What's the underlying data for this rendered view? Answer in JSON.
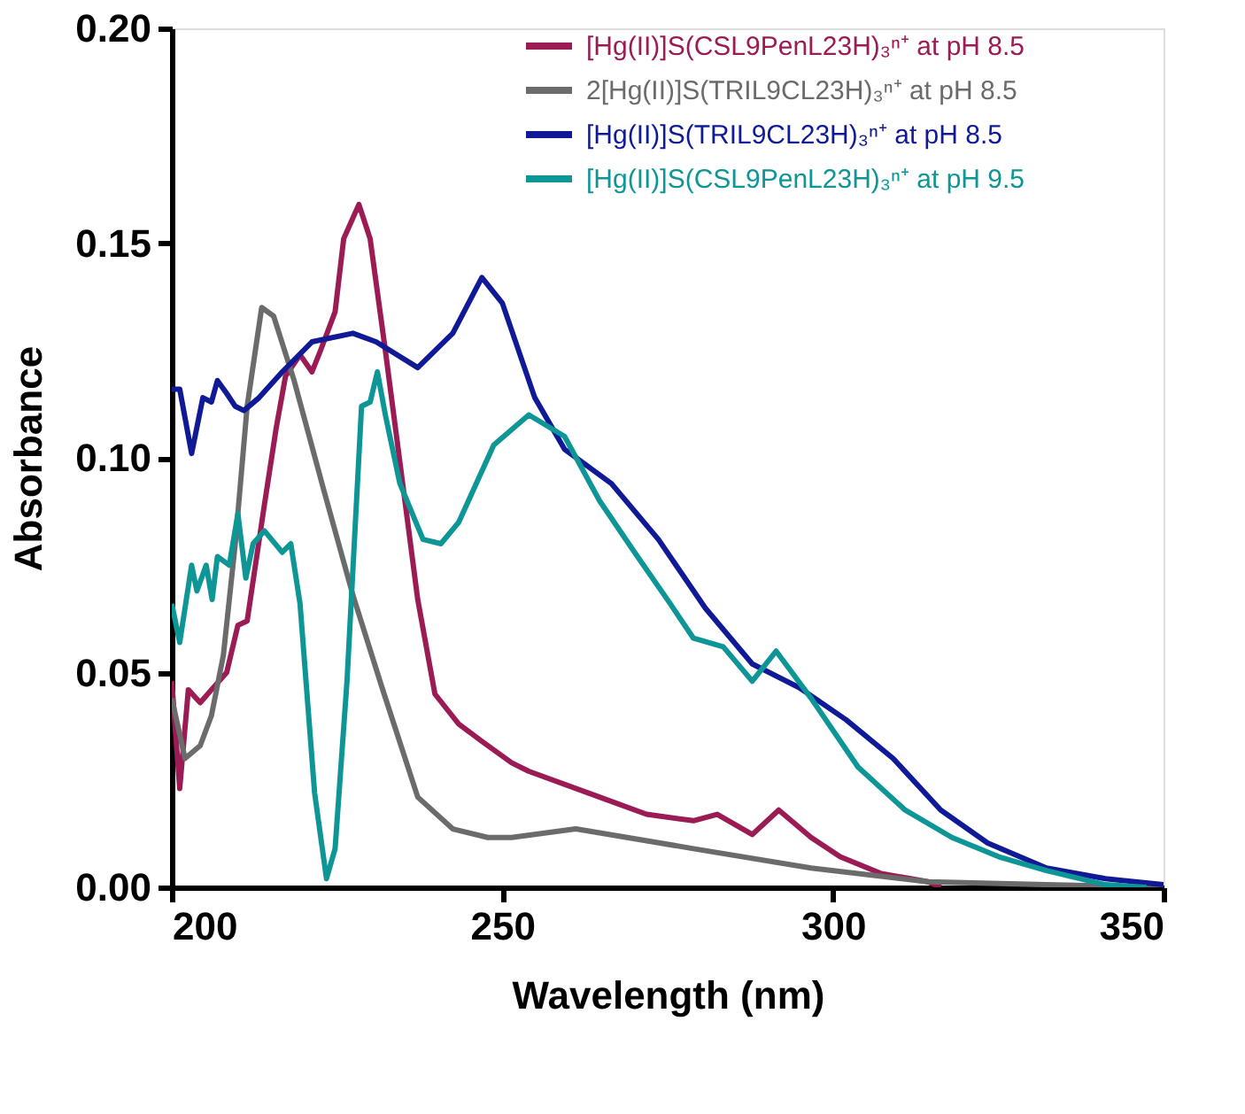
{
  "chart_data": {
    "type": "line",
    "xlabel": "Wavelength (nm)",
    "ylabel": "Absorbance",
    "xlim": [
      200,
      350
    ],
    "ylim": [
      0,
      0.2
    ],
    "xticks": [
      200,
      250,
      300,
      350
    ],
    "yticks": [
      {
        "value": 0,
        "label": "0.00"
      },
      {
        "value": 0.05,
        "label": "0.05"
      },
      {
        "value": 0.1,
        "label": "0.10"
      },
      {
        "value": 0.15,
        "label": "0.15"
      },
      {
        "value": 0.2,
        "label": "0.20"
      }
    ],
    "grid": false,
    "legend": "top right",
    "marker": "none",
    "line_style": "solid",
    "series": [
      {
        "name": "[Hg(II)]S(CSL9PenL23H)₃ⁿ⁺ at pH 8.5",
        "color": "#9b1b55",
        "x": [
          200,
          201.2,
          202.5,
          204.3,
          206,
          208.3,
          210,
          211.4,
          214,
          215.8,
          217.2,
          219.4,
          221.2,
          222.5,
          224.7,
          226,
          228.3,
          230,
          232.3,
          234.5,
          237.2,
          239.8,
          243.4,
          246.9,
          251.4,
          254,
          264.7,
          271.8,
          278.9,
          282.5,
          287.8,
          291.8,
          296.7,
          301.1,
          307.3,
          314.4,
          316.3
        ],
        "values": [
          0.048,
          0.023,
          0.046,
          0.043,
          0.046,
          0.05,
          0.061,
          0.062,
          0.089,
          0.107,
          0.119,
          0.124,
          0.12,
          0.125,
          0.134,
          0.151,
          0.159,
          0.151,
          0.125,
          0.099,
          0.067,
          0.045,
          0.038,
          0.034,
          0.029,
          0.027,
          0.021,
          0.017,
          0.0155,
          0.017,
          0.0123,
          0.018,
          0.0116,
          0.0071,
          0.0032,
          0.0013,
          0
        ]
      },
      {
        "name": "2[Hg(II)]S(TRIL9CL23H)₃ⁿ⁺ at pH 8.5",
        "color": "#6b6b6b",
        "x": [
          200,
          202,
          204.3,
          206,
          207.8,
          209.6,
          211.4,
          213.6,
          215.4,
          218.5,
          222.9,
          227.4,
          231.8,
          237.2,
          242.5,
          247.8,
          251.4,
          261.1,
          278.9,
          296.7,
          314.4,
          332.3,
          350
        ],
        "values": [
          0.044,
          0.03,
          0.033,
          0.04,
          0.054,
          0.08,
          0.112,
          0.135,
          0.133,
          0.118,
          0.093,
          0.068,
          0.0465,
          0.021,
          0.0136,
          0.0116,
          0.0116,
          0.0136,
          0.009,
          0.0045,
          0.0013,
          0.0006,
          0
        ]
      },
      {
        "name": "[Hg(II)]S(TRIL9CL23H)₃ⁿ⁺ at pH 8.5",
        "color": "#101a96",
        "x": [
          200,
          201.2,
          203,
          204.7,
          206,
          206.9,
          208.3,
          209.6,
          210.9,
          213.2,
          216.7,
          221.2,
          227.4,
          230.9,
          237.2,
          242.5,
          246.9,
          250,
          254.9,
          259.4,
          266.5,
          273.6,
          280.7,
          287.8,
          294.9,
          302,
          309.1,
          316.3,
          323.4,
          332.3,
          341.2,
          350
        ],
        "values": [
          0.116,
          0.116,
          0.101,
          0.114,
          0.113,
          0.118,
          0.115,
          0.112,
          0.111,
          0.114,
          0.12,
          0.127,
          0.129,
          0.127,
          0.121,
          0.129,
          0.142,
          0.136,
          0.114,
          0.102,
          0.094,
          0.081,
          0.065,
          0.052,
          0.0465,
          0.039,
          0.03,
          0.018,
          0.0103,
          0.0045,
          0.002,
          0.0006
        ]
      },
      {
        "name": "[Hg(II)]S(CSL9PenL23H)₃ⁿ⁺ at pH 9.5",
        "color": "#0e9696",
        "x": [
          200,
          201.2,
          203,
          203.8,
          205.2,
          206.1,
          206.9,
          208.7,
          210,
          211.2,
          212.3,
          214,
          216.7,
          218,
          219.4,
          221.6,
          223.4,
          224.7,
          226.5,
          228.7,
          230,
          231.1,
          232.3,
          234.5,
          238,
          240.7,
          243.4,
          248.7,
          254,
          259.4,
          264.7,
          270,
          275.4,
          278.9,
          283.4,
          287.8,
          291.4,
          296.7,
          303.8,
          310.9,
          318,
          325.1,
          332.3,
          341.2,
          347.4
        ],
        "values": [
          0.066,
          0.057,
          0.075,
          0.069,
          0.075,
          0.067,
          0.077,
          0.075,
          0.087,
          0.072,
          0.08,
          0.083,
          0.078,
          0.08,
          0.066,
          0.022,
          0.002,
          0.009,
          0.048,
          0.112,
          0.113,
          0.12,
          0.11,
          0.094,
          0.081,
          0.08,
          0.085,
          0.103,
          0.11,
          0.105,
          0.09,
          0.078,
          0.066,
          0.058,
          0.056,
          0.048,
          0.055,
          0.044,
          0.028,
          0.018,
          0.0116,
          0.0071,
          0.0039,
          0.0006,
          0
        ]
      }
    ]
  }
}
